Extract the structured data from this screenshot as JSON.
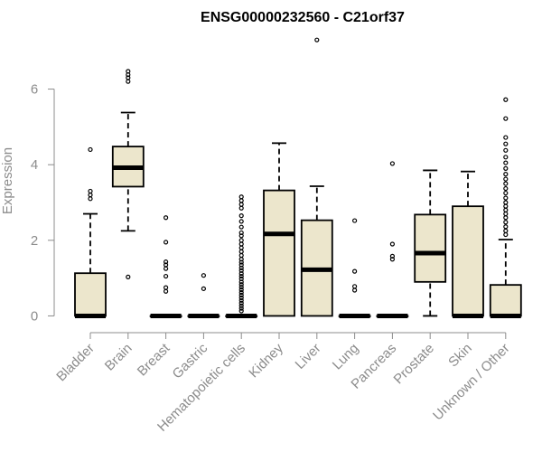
{
  "chart_data": {
    "type": "boxplot",
    "title": "ENSG00000232560 - C21orf37",
    "ylabel": "Expression",
    "xlabel": "",
    "ylim": [
      -0.3,
      7.4
    ],
    "yticks": [
      0,
      2,
      4,
      6
    ],
    "grid": false,
    "colors": {
      "box_fill": "#ece6cc",
      "box_stroke": "#000000",
      "axis": "#8c8c8c"
    },
    "categories": [
      "Bladder",
      "Brain",
      "Breast",
      "Gastric",
      "Hematopoietic cells",
      "Kidney",
      "Liver",
      "Lung",
      "Pancreas",
      "Prostate",
      "Skin",
      "Unknown / Other"
    ],
    "boxes": [
      {
        "category": "Bladder",
        "q1": 0,
        "median": 0,
        "q3": 1.13,
        "whisker_low": 0,
        "whisker_high": 2.7,
        "outliers": [
          4.4,
          3.3,
          3.2,
          3.1
        ]
      },
      {
        "category": "Brain",
        "q1": 3.42,
        "median": 3.92,
        "q3": 4.48,
        "whisker_low": 2.25,
        "whisker_high": 5.38,
        "outliers": [
          6.47,
          6.38,
          6.3,
          6.2,
          1.03
        ]
      },
      {
        "category": "Breast",
        "q1": 0,
        "median": 0,
        "q3": 0,
        "whisker_low": 0,
        "whisker_high": 0,
        "outliers": [
          2.6,
          1.95,
          1.43,
          1.35,
          1.25,
          1.05,
          0.75,
          0.65
        ]
      },
      {
        "category": "Gastric",
        "q1": 0,
        "median": 0,
        "q3": 0,
        "whisker_low": 0,
        "whisker_high": 0,
        "outliers": [
          1.07,
          0.72
        ]
      },
      {
        "category": "Hematopoietic cells",
        "q1": 0,
        "median": 0,
        "q3": 0,
        "whisker_low": 0,
        "whisker_high": 0,
        "outliers": [
          3.15,
          3.05,
          2.95,
          2.85,
          2.65,
          2.5,
          2.35,
          2.2,
          2.12,
          2.0,
          1.9,
          1.8,
          1.7,
          1.6,
          1.5,
          1.42,
          1.35,
          1.27,
          1.2,
          1.12,
          1.05,
          0.98,
          0.9,
          0.83,
          0.76,
          0.69,
          0.62,
          0.55,
          0.48,
          0.41,
          0.34,
          0.27,
          0.2,
          0.13
        ]
      },
      {
        "category": "Kidney",
        "q1": 0,
        "median": 2.17,
        "q3": 3.32,
        "whisker_low": 0,
        "whisker_high": 4.57,
        "outliers": []
      },
      {
        "category": "Liver",
        "q1": 0,
        "median": 1.22,
        "q3": 2.53,
        "whisker_low": 0,
        "whisker_high": 3.43,
        "outliers": [
          7.3
        ]
      },
      {
        "category": "Lung",
        "q1": 0,
        "median": 0,
        "q3": 0,
        "whisker_low": 0,
        "whisker_high": 0,
        "outliers": [
          2.52,
          1.18,
          0.78,
          0.68
        ]
      },
      {
        "category": "Pancreas",
        "q1": 0,
        "median": 0,
        "q3": 0,
        "whisker_low": 0,
        "whisker_high": 0,
        "outliers": [
          4.03,
          1.9,
          1.58,
          1.5
        ]
      },
      {
        "category": "Prostate",
        "q1": 0.9,
        "median": 1.66,
        "q3": 2.68,
        "whisker_low": 0,
        "whisker_high": 3.85,
        "outliers": []
      },
      {
        "category": "Skin",
        "q1": 0,
        "median": 0,
        "q3": 2.9,
        "whisker_low": 0,
        "whisker_high": 3.82,
        "outliers": []
      },
      {
        "category": "Unknown / Other",
        "q1": 0,
        "median": 0,
        "q3": 0.82,
        "whisker_low": 0,
        "whisker_high": 2.02,
        "outliers": [
          5.72,
          5.22,
          4.72,
          4.55,
          4.38,
          4.2,
          4.05,
          3.9,
          3.75,
          3.62,
          3.5,
          3.37,
          3.25,
          3.12,
          3.0,
          2.9,
          2.8,
          2.7,
          2.6,
          2.48,
          2.36,
          2.25,
          2.15
        ]
      }
    ]
  }
}
